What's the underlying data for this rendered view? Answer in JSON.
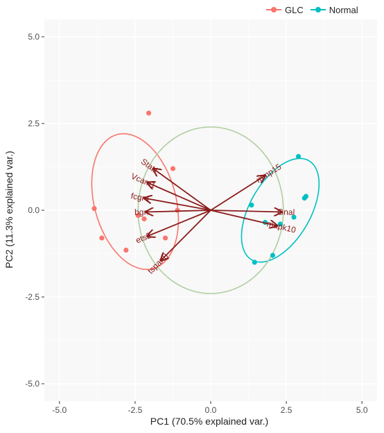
{
  "chart_data": {
    "type": "scatter",
    "subtype": "pca-biplot",
    "xlabel": "PC1 (70.5% explained var.)",
    "ylabel": "PC2 (11.3% explained var.)",
    "xlim": [
      -5.5,
      5.5
    ],
    "ylim": [
      -5.5,
      5.5
    ],
    "xticks": [
      -5.0,
      -2.5,
      0.0,
      2.5,
      5.0
    ],
    "yticks": [
      -5.0,
      -2.5,
      0.0,
      2.5,
      5.0
    ],
    "xtick_labels": [
      "-5.0",
      "-2.5",
      "0.0",
      "2.5",
      "5.0"
    ],
    "ytick_labels": [
      "-5.0",
      "-2.5",
      "0.0",
      "2.5",
      "5.0"
    ],
    "grid": true,
    "legend_position": "top-right",
    "series": [
      {
        "name": "GLC",
        "color": "#f8766d",
        "points": [
          {
            "x": -2.05,
            "y": 2.8
          },
          {
            "x": -1.25,
            "y": 1.2
          },
          {
            "x": -3.85,
            "y": 0.05
          },
          {
            "x": -2.4,
            "y": -0.15
          },
          {
            "x": -2.2,
            "y": -0.25
          },
          {
            "x": -1.1,
            "y": 0.0
          },
          {
            "x": -3.6,
            "y": -0.8
          },
          {
            "x": -2.8,
            "y": -1.15
          },
          {
            "x": -1.5,
            "y": -0.8
          }
        ]
      },
      {
        "name": "Normal",
        "color": "#00bfc4",
        "points": [
          {
            "x": 2.9,
            "y": 1.55
          },
          {
            "x": 1.35,
            "y": 0.15
          },
          {
            "x": 3.15,
            "y": 0.4
          },
          {
            "x": 3.1,
            "y": 0.35
          },
          {
            "x": 2.75,
            "y": -0.2
          },
          {
            "x": 1.8,
            "y": -0.35
          },
          {
            "x": 2.3,
            "y": -0.4
          },
          {
            "x": 2.05,
            "y": -1.3
          },
          {
            "x": 1.45,
            "y": -1.5
          }
        ]
      }
    ],
    "ellipses": [
      {
        "group": "GLC",
        "cx": -2.5,
        "cy": 0.25,
        "rx": 1.35,
        "ry": 2.0,
        "rotation_deg": -15,
        "color": "#f8766d"
      },
      {
        "group": "Normal",
        "cx": 2.3,
        "cy": 0.0,
        "rx": 1.0,
        "ry": 1.65,
        "rotation_deg": 30,
        "color": "#00bfc4"
      },
      {
        "group": "center",
        "cx": 0.0,
        "cy": 0.0,
        "rx": 2.4,
        "ry": 2.4,
        "rotation_deg": 0,
        "color": "#b0cca0"
      }
    ],
    "loadings": [
      {
        "name": "Stat1",
        "x": -1.9,
        "y": 1.2
      },
      {
        "name": "Vcam1",
        "x": -2.1,
        "y": 0.8
      },
      {
        "name": "fcgr4",
        "x": -2.2,
        "y": 0.35
      },
      {
        "name": "bgn",
        "x": -2.15,
        "y": -0.05
      },
      {
        "name": "ets2",
        "x": -2.1,
        "y": -0.75
      },
      {
        "name": "tspan8",
        "x": -1.65,
        "y": -1.45
      },
      {
        "name": "mmp15",
        "x": 1.8,
        "y": 1.0
      },
      {
        "name": "Gnal",
        "x": 2.35,
        "y": -0.05
      },
      {
        "name": "mapk10",
        "x": 2.2,
        "y": -0.45
      }
    ],
    "arrow_color": "#8b1a1a"
  },
  "legend": {
    "items": [
      {
        "label": "GLC",
        "color": "#f8766d"
      },
      {
        "label": "Normal",
        "color": "#00bfc4"
      }
    ]
  }
}
